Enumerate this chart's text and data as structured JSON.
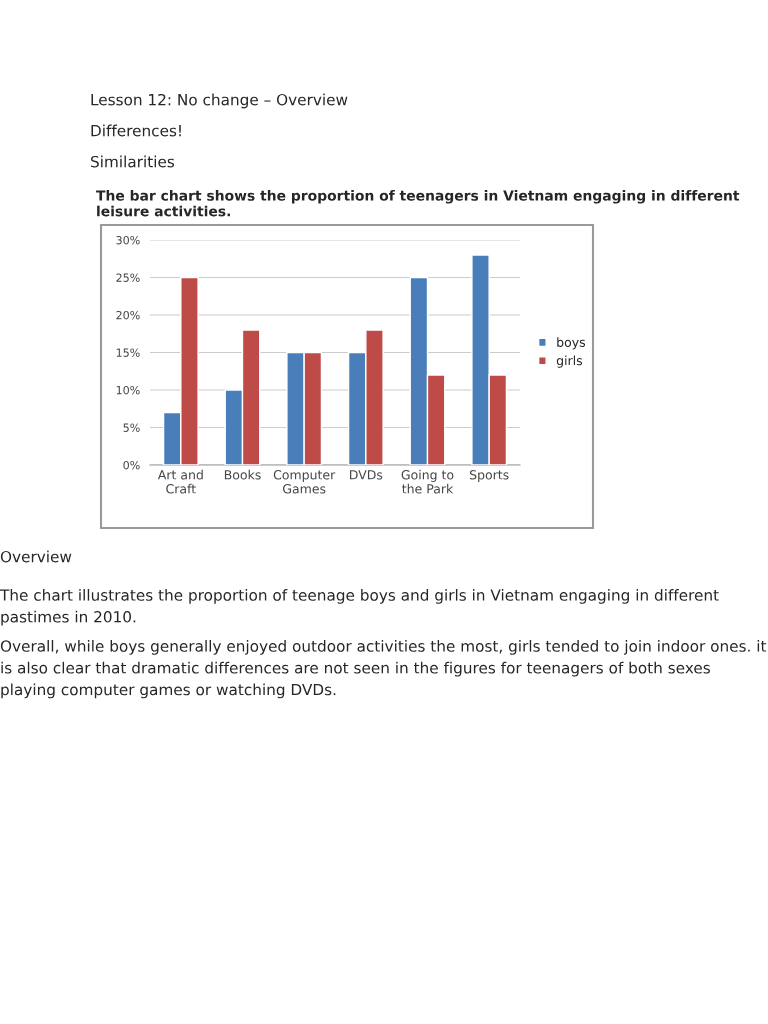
{
  "chart_data": {
    "type": "bar",
    "title": "The bar chart shows the proportion of teenagers in Vietnam engaging in different leisure activities.",
    "categories": [
      "Art and\nCraft",
      "Books",
      "Computer\nGames",
      "DVDs",
      "Going to\nthe Park",
      "Sports"
    ],
    "series": [
      {
        "name": "boys",
        "color": "#4a7ebb",
        "values": [
          7,
          10,
          15,
          15,
          25,
          28
        ]
      },
      {
        "name": "girls",
        "color": "#be4b48",
        "values": [
          25,
          18,
          15,
          18,
          12,
          12
        ]
      }
    ],
    "ylim": [
      0,
      30
    ],
    "yticks": [
      {
        "value": 0,
        "label": "0%"
      },
      {
        "value": 5,
        "label": "5%"
      },
      {
        "value": 10,
        "label": "10%"
      },
      {
        "value": 15,
        "label": "15%"
      },
      {
        "value": 20,
        "label": "20%"
      },
      {
        "value": 25,
        "label": "25%"
      },
      {
        "value": 30,
        "label": "30%"
      }
    ],
    "grid": "y",
    "legend": "right",
    "annotations": [
      "Lesson 12: No change – Overview",
      "Differences!",
      "Similarities",
      "Overview",
      "The chart illustrates the proportion of teenage boys and girls in Vietnam engaging in different pastimes in 2010.",
      "Overall, while boys generally enjoyed outdoor activities the most, girls tended to join indoor ones. it is also clear that dramatic differences are not seen in the figures for teenagers of both sexes playing computer games or watching DVDs."
    ]
  }
}
